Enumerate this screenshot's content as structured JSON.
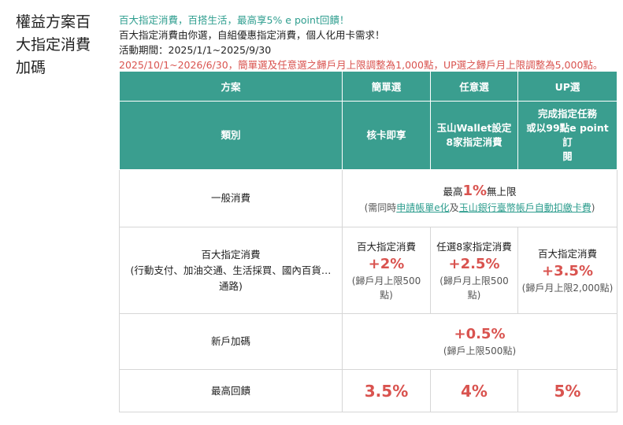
{
  "side_title": "權益方案百大指定消費加碼",
  "intro": {
    "headline": "百大指定消費，百搭生活，最高享5% e point回饋！",
    "description": "百大指定消費由你選，自組優惠指定消費，個人化用卡需求！",
    "period": "活動期間：2025/1/1~2025/9/30",
    "notice": "2025/10/1~2026/6/30，簡單選及任意選之歸戶月上限調整為1,000點，UP選之歸戶月上限調整為5,000點。"
  },
  "table": {
    "header": {
      "plan": "方案",
      "simple": "簡單選",
      "any": "任意選",
      "up": "UP選"
    },
    "kind": {
      "label": "類別",
      "simple": "核卡即享",
      "any_line1": "玉山Wallet設定",
      "any_line2": "8家指定消費",
      "up_line1": "完成指定任務",
      "up_line2": "或以99點e point訂",
      "up_line3": "閱"
    },
    "general": {
      "label": "一般消費",
      "prefix": "最高",
      "rate": "1%",
      "suffix": "無上限",
      "note_open": "(需同時",
      "link1": "申請帳單e化",
      "note_and": "及",
      "link2": "玉山銀行臺幣帳戶自動扣繳卡費",
      "note_close": ")"
    },
    "designated": {
      "label": "百大指定消費",
      "sublabel": "(行動支付、加油交通、生活採買、國內百貨…通路)",
      "simple_title": "百大指定消費",
      "simple_rate": "+2%",
      "simple_cap": "(歸戶月上限500點)",
      "any_title": "任選8家指定消費",
      "any_rate": "+2.5%",
      "any_cap": "(歸戶月上限500點)",
      "up_title": "百大指定消費",
      "up_rate": "+3.5%",
      "up_cap": "(歸戶月上限2,000點)"
    },
    "newuser": {
      "label": "新戶加碼",
      "rate": "+0.5%",
      "cap": "(歸戶上限500點)"
    },
    "max": {
      "label": "最高回饋",
      "simple": "3.5%",
      "any": "4%",
      "up": "5%"
    }
  }
}
